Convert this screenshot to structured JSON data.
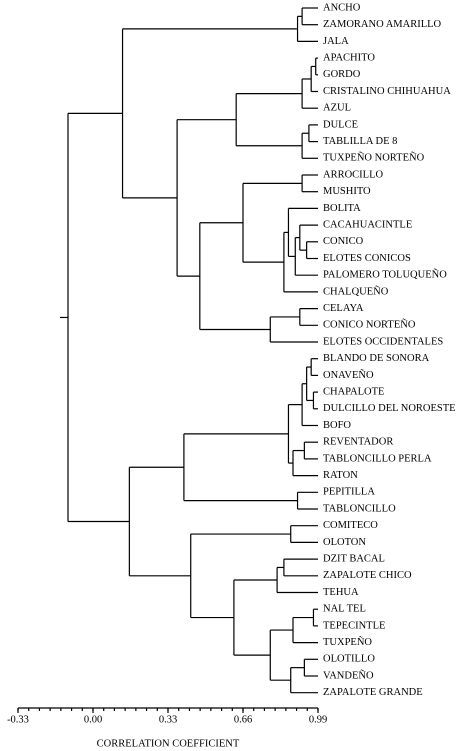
{
  "chart_data": {
    "type": "dendrogram",
    "x_label": "CORRELATION COEFFICIENT",
    "xlim": [
      -0.33,
      0.99
    ],
    "xticks": [
      {
        "value": -0.33,
        "label": "-0.33"
      },
      {
        "value": 0,
        "label": "0.00"
      },
      {
        "value": 0.33,
        "label": "0.33"
      },
      {
        "value": 0.66,
        "label": "0.66"
      },
      {
        "value": 0.99,
        "label": "0.99"
      }
    ],
    "color": "#000000",
    "tree": {
      "height": -0.11,
      "children": [
        {
          "height": 0.13,
          "children": [
            {
              "height": 0.9,
              "children": [
                {
                  "height": 0.92,
                  "children": [
                    "ANCHO",
                    "ZAMORANO AMARILLO"
                  ]
                },
                "JALA"
              ]
            },
            {
              "height": 0.37,
              "children": [
                {
                  "height": 0.63,
                  "children": [
                    {
                      "height": 0.92,
                      "children": [
                        {
                          "height": 0.96,
                          "children": [
                            {
                              "height": 0.98,
                              "children": [
                                "APACHITO",
                                "GORDO"
                              ]
                            },
                            "CRISTALINO CHIHUAHUA"
                          ]
                        },
                        "AZUL"
                      ]
                    },
                    {
                      "height": 0.92,
                      "children": [
                        {
                          "height": 0.95,
                          "children": [
                            "DULCE",
                            "TABLILLA DE 8"
                          ]
                        },
                        "TUXPEÑO NORTEÑO"
                      ]
                    }
                  ]
                },
                {
                  "height": 0.47,
                  "children": [
                    {
                      "height": 0.66,
                      "children": [
                        {
                          "height": 0.92,
                          "children": [
                            "ARROCILLO",
                            "MUSHITO"
                          ]
                        },
                        {
                          "height": 0.84,
                          "children": [
                            {
                              "height": 0.86,
                              "children": [
                                "BOLITA",
                                {
                                  "height": 0.89,
                                  "children": [
                                    {
                                      "height": 0.91,
                                      "children": [
                                        "CACAHUACINTLE",
                                        {
                                          "height": 0.94,
                                          "children": [
                                            "CONICO",
                                            "ELOTES CONICOS"
                                          ]
                                        }
                                      ]
                                    },
                                    "PALOMERO TOLUQUEÑO"
                                  ]
                                }
                              ]
                            },
                            "CHALQUEÑO"
                          ]
                        }
                      ]
                    },
                    {
                      "height": 0.78,
                      "children": [
                        {
                          "height": 0.91,
                          "children": [
                            "CELAYA",
                            "CONICO NORTEÑO"
                          ]
                        },
                        "ELOTES OCCIDENTALES"
                      ]
                    }
                  ]
                }
              ]
            }
          ]
        },
        {
          "height": 0.16,
          "children": [
            {
              "height": 0.4,
              "children": [
                {
                  "height": 0.86,
                  "children": [
                    {
                      "height": 0.92,
                      "children": [
                        {
                          "height": 0.94,
                          "children": [
                            {
                              "height": 0.96,
                              "children": [
                                "BLANDO DE SONORA",
                                "ONAVEÑO"
                              ]
                            },
                            {
                              "height": 0.97,
                              "children": [
                                "CHAPALOTE",
                                "DULCILLO DEL NOROESTE"
                              ]
                            }
                          ]
                        },
                        "BOFO"
                      ]
                    },
                    {
                      "height": 0.88,
                      "children": [
                        {
                          "height": 0.93,
                          "children": [
                            "REVENTADOR",
                            "TABLONCILLO PERLA"
                          ]
                        },
                        "RATON"
                      ]
                    }
                  ]
                },
                {
                  "height": 0.9,
                  "children": [
                    "PEPITILLA",
                    "TABLONCILLO"
                  ]
                }
              ]
            },
            {
              "height": 0.43,
              "children": [
                {
                  "height": 0.87,
                  "children": [
                    "COMITECO",
                    "OLOTON"
                  ]
                },
                {
                  "height": 0.62,
                  "children": [
                    {
                      "height": 0.81,
                      "children": [
                        {
                          "height": 0.84,
                          "children": [
                            "DZIT BACAL",
                            "ZAPALOTE CHICO"
                          ]
                        },
                        "TEHUA"
                      ]
                    },
                    {
                      "height": 0.78,
                      "children": [
                        {
                          "height": 0.88,
                          "children": [
                            {
                              "height": 0.97,
                              "children": [
                                "NAL TEL",
                                "TEPECINTLE"
                              ]
                            },
                            "TUXPEÑO"
                          ]
                        },
                        {
                          "height": 0.87,
                          "children": [
                            {
                              "height": 0.93,
                              "children": [
                                "OLOTILLO",
                                "VANDEÑO"
                              ]
                            },
                            "ZAPALOTE GRANDE"
                          ]
                        }
                      ]
                    }
                  ]
                }
              ]
            }
          ]
        }
      ]
    }
  }
}
